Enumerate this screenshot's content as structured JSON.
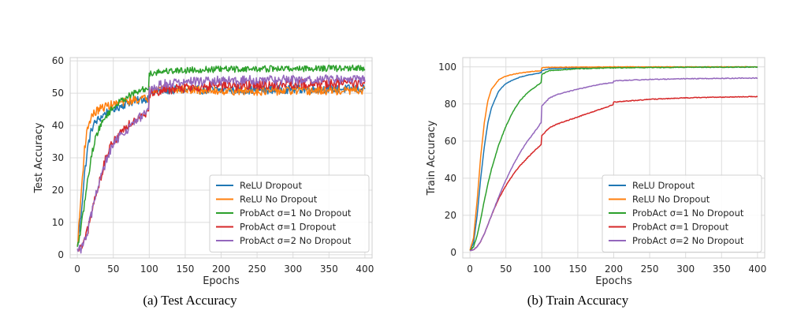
{
  "chart_data": [
    {
      "type": "line",
      "caption": "(a) Test Accuracy",
      "xlabel": "Epochs",
      "ylabel": "Test Accuracy",
      "xlim": [
        -10,
        410
      ],
      "ylim": [
        -1,
        61
      ],
      "xticks": [
        0,
        50,
        100,
        150,
        200,
        250,
        300,
        350,
        400
      ],
      "yticks": [
        0,
        10,
        20,
        30,
        40,
        50,
        60
      ],
      "grid": true,
      "legend_position": "lower-right",
      "series": [
        {
          "name": "ReLU Dropout",
          "color": "#1f77b4",
          "x": [
            0,
            5,
            10,
            15,
            20,
            25,
            30,
            40,
            50,
            60,
            70,
            80,
            90,
            99,
            100,
            110,
            120,
            140,
            160,
            180,
            200,
            250,
            300,
            350,
            400
          ],
          "y": [
            2,
            12,
            25,
            34,
            39,
            41,
            42,
            44,
            45,
            46,
            47,
            47.5,
            48,
            48.5,
            50,
            50.5,
            50.8,
            51,
            51,
            51,
            51,
            51,
            51.2,
            51.3,
            51.3
          ],
          "noise": 1.3
        },
        {
          "name": "ReLU No Dropout",
          "color": "#ff7f0e",
          "x": [
            0,
            5,
            10,
            15,
            20,
            25,
            30,
            40,
            50,
            60,
            70,
            80,
            90,
            99,
            100,
            110,
            120,
            140,
            160,
            180,
            200,
            250,
            300,
            350,
            400
          ],
          "y": [
            2,
            18,
            33,
            40,
            43,
            44,
            45,
            46,
            46.5,
            47,
            47.5,
            48,
            48.2,
            48.5,
            51,
            51.5,
            51.5,
            51.2,
            51,
            50.8,
            50.7,
            50.6,
            50.7,
            50.7,
            50.8
          ],
          "noise": 1.3
        },
        {
          "name": "ProbAct σ=1 No Dropout",
          "color": "#2ca02c",
          "x": [
            0,
            5,
            10,
            15,
            20,
            25,
            30,
            40,
            50,
            60,
            70,
            80,
            90,
            99,
            100,
            110,
            120,
            140,
            160,
            180,
            200,
            250,
            300,
            350,
            400
          ],
          "y": [
            2,
            8,
            16,
            24,
            31,
            36,
            39,
            43,
            45.5,
            47.5,
            49,
            50,
            51,
            51.5,
            56,
            56.5,
            56.8,
            57,
            57.2,
            57.3,
            57.4,
            57.5,
            57.6,
            57.7,
            57.7
          ],
          "noise": 1.0
        },
        {
          "name": "ProbAct σ=1 Dropout",
          "color": "#d62728",
          "x": [
            0,
            5,
            10,
            15,
            20,
            25,
            30,
            40,
            50,
            60,
            70,
            80,
            90,
            99,
            100,
            110,
            120,
            140,
            160,
            180,
            200,
            250,
            300,
            350,
            400
          ],
          "y": [
            1,
            2,
            4,
            8,
            13,
            18,
            22,
            30,
            35,
            38,
            40,
            42,
            43.5,
            44.5,
            49.5,
            50.5,
            51,
            51.5,
            51.8,
            52,
            52.2,
            52.5,
            52.8,
            53,
            53.2
          ],
          "noise": 1.5
        },
        {
          "name": "ProbAct σ=2 No Dropout",
          "color": "#9467bd",
          "x": [
            0,
            5,
            10,
            15,
            20,
            25,
            30,
            40,
            50,
            60,
            70,
            80,
            90,
            99,
            100,
            110,
            120,
            140,
            160,
            180,
            200,
            250,
            300,
            350,
            400
          ],
          "y": [
            1,
            2,
            4,
            8,
            13,
            18,
            22,
            29,
            34,
            37,
            39,
            41,
            43,
            44.5,
            50.5,
            52,
            52.8,
            53.2,
            53.5,
            53.7,
            53.8,
            54,
            54.1,
            54.2,
            54.3
          ],
          "noise": 1.5
        }
      ]
    },
    {
      "type": "line",
      "caption": "(b) Train Accuracy",
      "xlabel": "Epochs",
      "ylabel": "Train Accuracy",
      "xlim": [
        -10,
        410
      ],
      "ylim": [
        -3,
        105
      ],
      "xticks": [
        0,
        50,
        100,
        150,
        200,
        250,
        300,
        350,
        400
      ],
      "yticks": [
        0,
        20,
        40,
        60,
        80,
        100
      ],
      "grid": true,
      "legend_position": "lower-right",
      "series": [
        {
          "name": "ReLU Dropout",
          "color": "#1f77b4",
          "x": [
            0,
            5,
            10,
            15,
            20,
            25,
            30,
            40,
            50,
            60,
            70,
            80,
            90,
            99,
            100,
            110,
            150,
            200,
            300,
            400
          ],
          "y": [
            1,
            5,
            20,
            40,
            57,
            70,
            78,
            87,
            91,
            93,
            94.5,
            95.5,
            96.2,
            96.8,
            98,
            99,
            99.5,
            99.8,
            99.9,
            99.9
          ],
          "noise": 0.15
        },
        {
          "name": "ReLU No Dropout",
          "color": "#ff7f0e",
          "x": [
            0,
            5,
            10,
            15,
            20,
            25,
            30,
            40,
            50,
            60,
            70,
            80,
            90,
            99,
            100,
            110,
            150,
            200,
            300,
            400
          ],
          "y": [
            1,
            8,
            28,
            52,
            70,
            82,
            88,
            93,
            95,
            96,
            96.7,
            97.2,
            97.6,
            98,
            99.5,
            99.8,
            99.9,
            100,
            100,
            100
          ],
          "noise": 0.15
        },
        {
          "name": "ProbAct σ=1 No Dropout",
          "color": "#2ca02c",
          "x": [
            0,
            5,
            10,
            15,
            20,
            25,
            30,
            40,
            50,
            60,
            70,
            80,
            90,
            99,
            100,
            110,
            150,
            200,
            300,
            400
          ],
          "y": [
            1,
            3,
            9,
            18,
            28,
            37,
            45,
            58,
            68,
            76,
            82,
            86,
            89,
            91.5,
            96,
            98,
            99,
            99.5,
            99.8,
            99.9
          ],
          "noise": 0.2
        },
        {
          "name": "ProbAct σ=1 Dropout",
          "color": "#d62728",
          "x": [
            0,
            5,
            10,
            15,
            20,
            25,
            30,
            40,
            50,
            60,
            70,
            80,
            90,
            99,
            100,
            110,
            120,
            150,
            180,
            199,
            200,
            250,
            300,
            350,
            400
          ],
          "y": [
            1,
            1.5,
            3,
            6,
            10,
            15,
            20,
            29,
            36,
            42,
            47,
            51,
            55,
            58,
            63,
            67,
            69,
            73,
            77,
            79.5,
            81,
            82.5,
            83.3,
            83.7,
            84
          ],
          "noise": 0.2
        },
        {
          "name": "ProbAct σ=2 No Dropout",
          "color": "#9467bd",
          "x": [
            0,
            5,
            10,
            15,
            20,
            25,
            30,
            40,
            50,
            60,
            70,
            80,
            90,
            99,
            100,
            110,
            120,
            150,
            180,
            199,
            200,
            250,
            300,
            350,
            400
          ],
          "y": [
            1,
            1.5,
            3,
            6,
            10,
            15,
            20,
            30,
            39,
            47,
            54,
            60,
            65,
            70,
            79,
            83,
            85,
            88,
            90.5,
            91.5,
            92.5,
            93.2,
            93.6,
            93.8,
            94
          ],
          "noise": 0.2
        }
      ]
    }
  ]
}
